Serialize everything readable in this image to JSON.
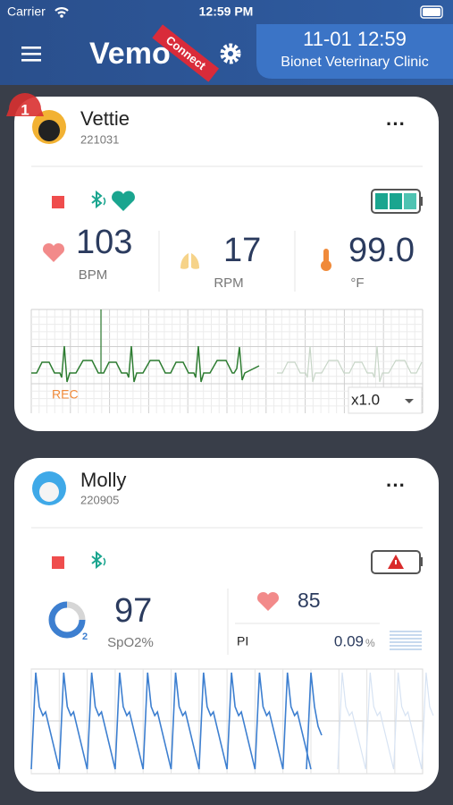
{
  "status_bar": {
    "carrier": "Carrier",
    "time": "12:59 PM"
  },
  "header": {
    "logo": "Vemo",
    "ribbon": "Connect",
    "datetime": "11-01 12:59",
    "clinic": "Bionet Veterinary Clinic"
  },
  "patients": [
    {
      "alert_count": "1",
      "name": "Vettie",
      "id": "221031",
      "heart_rate": "103",
      "heart_rate_unit": "BPM",
      "resp_rate": "17",
      "resp_rate_unit": "RPM",
      "temperature": "99.0",
      "temperature_unit": "°F",
      "rec_label": "REC",
      "speed": "x1.0"
    },
    {
      "name": "Molly",
      "id": "220905",
      "spo2_icon_sub": "2",
      "spo2": "97",
      "spo2_unit": "SpO2%",
      "pulse": "85",
      "pi_label": "PI",
      "pi_value": "0.09",
      "pi_unit": "%"
    }
  ]
}
